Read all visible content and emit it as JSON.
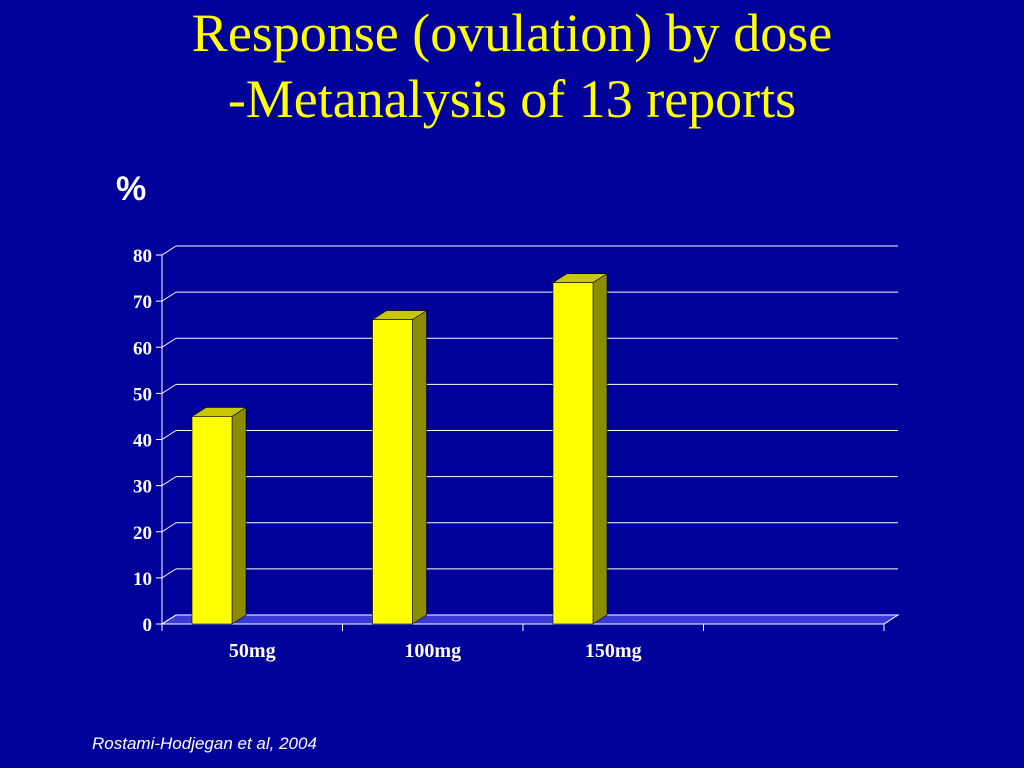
{
  "slide": {
    "title_line1": "Response (ovulation) by dose",
    "title_line2": "-Metanalysis of 13 reports",
    "source": "Rostami-Hodjegan et al, 2004"
  },
  "colors": {
    "background": "#00009a",
    "title": "#ffff00",
    "bar_front": "#ffff00",
    "bar_side": "#8c8c00",
    "bar_top": "#c8c800",
    "floor": "#3a3ad8",
    "grid": "#ffffff"
  },
  "chart_data": {
    "type": "bar",
    "ylabel": "%",
    "categories": [
      "50mg",
      "100mg",
      "150mg",
      ""
    ],
    "values": [
      45,
      66,
      74,
      null
    ],
    "ylim": [
      0,
      80
    ],
    "yticks": [
      0,
      10,
      20,
      30,
      40,
      50,
      60,
      70,
      80
    ],
    "grid": true
  }
}
